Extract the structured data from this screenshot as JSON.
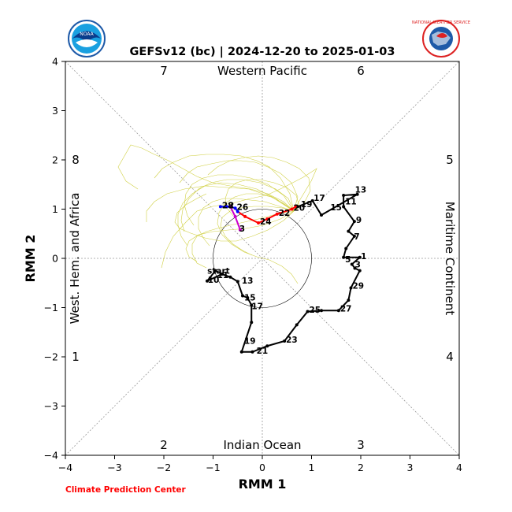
{
  "title": "GEFSv12 (bc) | 2024-12-20 to 2025-01-03",
  "footer": "Climate Prediction Center",
  "logos": {
    "left": "NOAA",
    "right": "NATIONAL WEATHER SERVICE"
  },
  "chart_data": {
    "type": "line",
    "title": "GEFSv12 (bc) | 2024-12-20 to 2025-01-03",
    "xlabel": "RMM 1",
    "ylabel": "RMM 2",
    "xlim": [
      -4,
      4
    ],
    "ylim": [
      -4,
      4
    ],
    "xticks": [
      -4,
      -3,
      -2,
      -1,
      0,
      1,
      2,
      3,
      4
    ],
    "yticks": [
      -4,
      -3,
      -2,
      -1,
      0,
      1,
      2,
      3,
      4
    ],
    "grid": false,
    "phase_labels": [
      "1",
      "2",
      "3",
      "4",
      "5",
      "6",
      "7",
      "8"
    ],
    "region_labels": {
      "top": "Western Pacific",
      "bottom": "Indian Ocean",
      "left": "West. Hem. and Africa",
      "right": "Maritime Continent"
    },
    "colors": {
      "observed": "#000000",
      "ensemble": "#cccc33",
      "mean_early": "#0000ff",
      "mean_mid": "#ff0000",
      "mean_late": "#cc00cc",
      "footer": "#ff0000"
    },
    "observed": {
      "points": [
        [
          -0.95,
          -0.25
        ],
        [
          -1.12,
          -0.46
        ],
        [
          -0.82,
          -0.32
        ],
        [
          -0.65,
          -0.38
        ],
        [
          -0.5,
          -0.47
        ],
        [
          -0.4,
          -0.76
        ],
        [
          -0.3,
          -0.8
        ],
        [
          -0.22,
          -0.95
        ],
        [
          -0.22,
          -1.3
        ],
        [
          -0.42,
          -1.9
        ],
        [
          -0.2,
          -1.9
        ],
        [
          0.1,
          -1.78
        ],
        [
          0.45,
          -1.68
        ],
        [
          0.7,
          -1.35
        ],
        [
          0.92,
          -1.08
        ],
        [
          1.2,
          -1.06
        ],
        [
          1.55,
          -1.06
        ],
        [
          1.75,
          -0.85
        ],
        [
          1.8,
          -0.6
        ],
        [
          1.98,
          -0.25
        ],
        [
          1.88,
          -0.2
        ],
        [
          1.82,
          -0.12
        ],
        [
          1.98,
          0.02
        ],
        [
          1.65,
          0.02
        ],
        [
          1.7,
          0.2
        ],
        [
          1.87,
          0.45
        ],
        [
          1.75,
          0.55
        ],
        [
          1.87,
          0.75
        ],
        [
          1.65,
          1.05
        ],
        [
          1.65,
          1.28
        ],
        [
          1.93,
          1.3
        ],
        [
          1.2,
          0.88
        ],
        [
          1.02,
          1.17
        ],
        [
          0.72,
          1.05
        ]
      ],
      "labels": [
        {
          "text": "start",
          "x": -1.15,
          "y": -0.28
        },
        {
          "text": "10",
          "x": -1.14,
          "y": -0.46
        },
        {
          "text": "11",
          "x": -0.95,
          "y": -0.37
        },
        {
          "text": "13",
          "x": -0.45,
          "y": -0.48
        },
        {
          "text": "15",
          "x": -0.4,
          "y": -0.82
        },
        {
          "text": "17",
          "x": -0.25,
          "y": -1.0
        },
        {
          "text": "19",
          "x": -0.4,
          "y": -1.7
        },
        {
          "text": "21",
          "x": -0.15,
          "y": -1.9
        },
        {
          "text": "23",
          "x": 0.45,
          "y": -1.68
        },
        {
          "text": "25",
          "x": 0.92,
          "y": -1.07
        },
        {
          "text": "27",
          "x": 1.55,
          "y": -1.05
        },
        {
          "text": "29",
          "x": 1.8,
          "y": -0.58
        },
        {
          "text": "1",
          "x": 1.97,
          "y": 0.02
        },
        {
          "text": "3",
          "x": 1.85,
          "y": -0.15
        },
        {
          "text": "5",
          "x": 1.65,
          "y": -0.05
        },
        {
          "text": "7",
          "x": 1.83,
          "y": 0.42
        },
        {
          "text": "9",
          "x": 1.87,
          "y": 0.75
        },
        {
          "text": "11",
          "x": 1.65,
          "y": 1.13
        },
        {
          "text": "13",
          "x": 1.85,
          "y": 1.37
        },
        {
          "text": "15",
          "x": 1.35,
          "y": 1.01
        },
        {
          "text": "17",
          "x": 1.01,
          "y": 1.2
        },
        {
          "text": "19",
          "x": 0.75,
          "y": 1.07
        }
      ]
    },
    "forecast_mean": {
      "points": [
        [
          0.68,
          1.05
        ],
        [
          0.6,
          1.0
        ],
        [
          0.3,
          0.9
        ],
        [
          0.1,
          0.8
        ],
        [
          -0.08,
          0.72
        ],
        [
          -0.35,
          0.85
        ],
        [
          -0.5,
          0.95
        ],
        [
          -0.55,
          1.02
        ],
        [
          -0.65,
          1.05
        ],
        [
          -0.72,
          1.05
        ],
        [
          -0.85,
          1.05
        ],
        [
          -0.65,
          1.05
        ],
        [
          -0.55,
          0.85
        ],
        [
          -0.45,
          0.58
        ]
      ],
      "labels": [
        {
          "text": "20",
          "x": 0.6,
          "y": 1.0
        },
        {
          "text": "22",
          "x": 0.3,
          "y": 0.9
        },
        {
          "text": "24",
          "x": -0.08,
          "y": 0.72
        },
        {
          "text": "26",
          "x": -0.55,
          "y": 1.02
        },
        {
          "text": "28",
          "x": -0.85,
          "y": 1.05
        },
        {
          "text": "2",
          "x": -0.72,
          "y": 1.05
        },
        {
          "text": "3",
          "x": -0.5,
          "y": 0.58
        }
      ]
    }
  }
}
